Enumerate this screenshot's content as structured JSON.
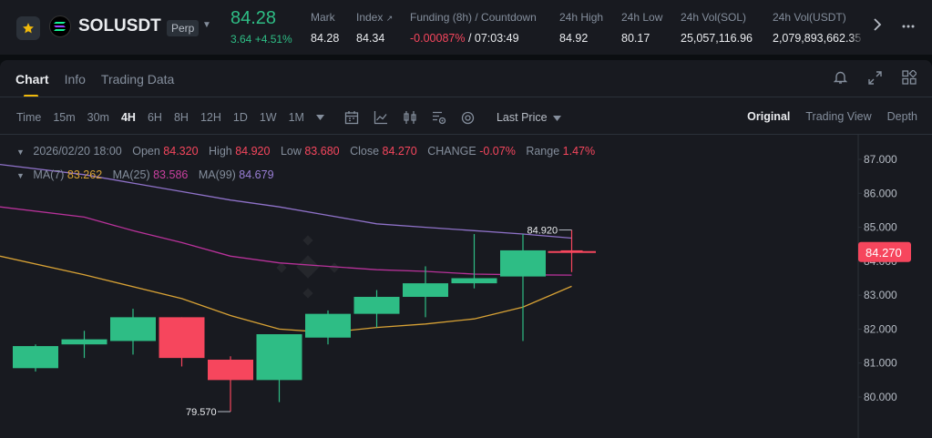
{
  "ticker": {
    "symbol": "SOLUSDT",
    "contract_type": "Perp",
    "last_price": "84.28",
    "change": "3.64 +4.51%",
    "stats": [
      {
        "label": "Mark",
        "value": "84.28"
      },
      {
        "label": "Index",
        "value": "84.34"
      },
      {
        "label": "Funding (8h) / Countdown",
        "value_neg": "-0.00087%",
        "value": "/ 07:03:49"
      },
      {
        "label": "24h High",
        "value": "84.92"
      },
      {
        "label": "24h Low",
        "value": "80.17"
      },
      {
        "label": "24h Vol(SOL)",
        "value": "25,057,116.96"
      },
      {
        "label": "24h Vol(USDT)",
        "value": "2,079,893,662.35"
      }
    ]
  },
  "tabs": [
    "Chart",
    "Info",
    "Trading Data"
  ],
  "timeframes": [
    "Time",
    "15m",
    "30m",
    "4H",
    "6H",
    "8H",
    "12H",
    "1D",
    "1W",
    "1M"
  ],
  "active_timeframe": "4H",
  "price_type": "Last Price",
  "views": [
    "Original",
    "Trading View",
    "Depth"
  ],
  "active_view": "Original",
  "legend": {
    "date": "2026/02/20 18:00",
    "open_label": "Open",
    "open": "84.320",
    "high_label": "High",
    "high": "84.920",
    "low_label": "Low",
    "low": "83.680",
    "close_label": "Close",
    "close": "84.270",
    "change_label": "CHANGE",
    "change": "-0.07%",
    "range_label": "Range",
    "range": "1.47%",
    "ma7_label": "MA(7)",
    "ma7": "83.262",
    "ma25_label": "MA(25)",
    "ma25": "83.586",
    "ma99_label": "MA(99)",
    "ma99": "84.679"
  },
  "colors": {
    "up": "#2ebd85",
    "down": "#f6465d",
    "ma7": "#d8a235",
    "ma25": "#b8329a",
    "ma99": "#8f72c9",
    "accent": "#f0b90b"
  },
  "chart_data": {
    "type": "candlestick",
    "y_ticks": [
      "87.000",
      "86.000",
      "85.000",
      "84.000",
      "83.000",
      "82.000",
      "81.000",
      "80.000"
    ],
    "ylim": [
      79.1,
      87.3
    ],
    "current_price_label": "84.270",
    "high_marker": "84.920",
    "low_marker": "79.570",
    "candles": [
      {
        "o": 80.85,
        "h": 81.55,
        "l": 80.75,
        "c": 81.5
      },
      {
        "o": 81.55,
        "h": 81.95,
        "l": 81.15,
        "c": 81.7
      },
      {
        "o": 81.65,
        "h": 82.6,
        "l": 81.25,
        "c": 82.35
      },
      {
        "o": 82.35,
        "h": 82.35,
        "l": 80.9,
        "c": 81.15
      },
      {
        "o": 81.1,
        "h": 81.2,
        "l": 79.57,
        "c": 80.5
      },
      {
        "o": 80.5,
        "h": 81.85,
        "l": 79.85,
        "c": 81.85
      },
      {
        "o": 81.75,
        "h": 82.55,
        "l": 81.55,
        "c": 82.45
      },
      {
        "o": 82.45,
        "h": 83.15,
        "l": 82.05,
        "c": 82.95
      },
      {
        "o": 82.95,
        "h": 83.85,
        "l": 82.35,
        "c": 83.35
      },
      {
        "o": 83.35,
        "h": 84.8,
        "l": 83.2,
        "c": 83.5
      },
      {
        "o": 83.55,
        "h": 84.8,
        "l": 81.65,
        "c": 84.32
      },
      {
        "o": 84.32,
        "h": 84.92,
        "l": 83.68,
        "c": 84.27
      }
    ],
    "ma7": [
      null,
      null,
      null,
      82.9,
      82.4,
      82.0,
      81.9,
      82.05,
      82.15,
      82.3,
      82.65,
      83.26
    ],
    "ma25": [
      85.6,
      85.3,
      84.9,
      84.55,
      84.15,
      83.95,
      83.85,
      83.75,
      83.7,
      83.62,
      83.6,
      83.59
    ],
    "ma99": [
      86.85,
      86.55,
      86.3,
      86.05,
      85.8,
      85.6,
      85.35,
      85.1,
      85.0,
      84.9,
      84.8,
      84.68
    ]
  }
}
